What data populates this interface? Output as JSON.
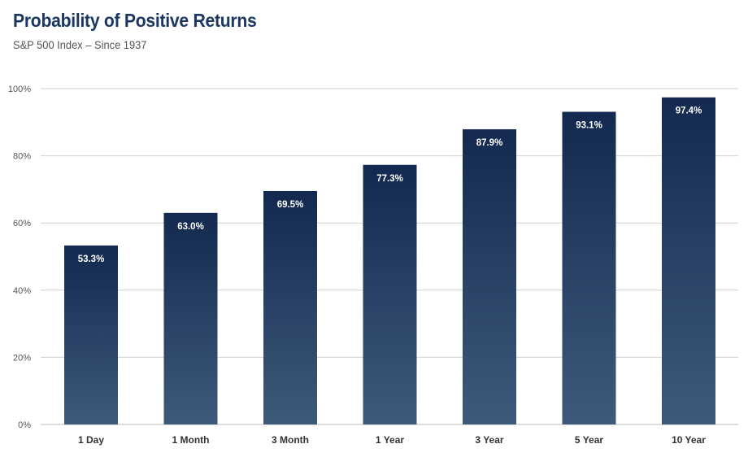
{
  "chart_data": {
    "type": "bar",
    "title": "Probability of Positive Returns",
    "subtitle": "S&P 500 Index – Since 1937",
    "categories": [
      "1 Day",
      "1 Month",
      "3 Month",
      "1 Year",
      "3 Year",
      "5 Year",
      "10  Year"
    ],
    "values": [
      53.3,
      63.0,
      69.5,
      77.3,
      87.9,
      93.1,
      97.4
    ],
    "data_labels": [
      "53.3%",
      "63.0%",
      "69.5%",
      "77.3%",
      "87.9%",
      "93.1%",
      "97.4%"
    ],
    "ylim": [
      0,
      100
    ],
    "yticks": [
      0,
      20,
      40,
      60,
      80,
      100
    ],
    "ytick_labels": [
      "0%",
      "20%",
      "40%",
      "60%",
      "80%",
      "100%"
    ],
    "xlabel": "",
    "ylabel": "",
    "grid": true,
    "legend": "none",
    "colors": {
      "bar_top": "#13294f",
      "bar_bottom": "#3e5a7a",
      "title": "#1b3762",
      "grid": "#d0d0d0"
    }
  }
}
